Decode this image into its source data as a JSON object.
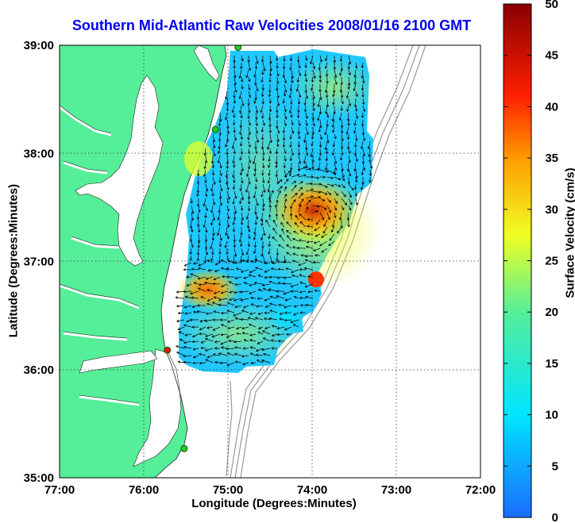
{
  "chart_data": {
    "type": "heatmap",
    "title": "Southern Mid-Atlantic Raw Velocities 2008/01/16 2100 GMT",
    "xlabel": "Longitude (Degrees:Minutes)",
    "ylabel": "Latitude (Degrees:Minutes)",
    "colorbar_label": "Surface Velocity (cm/s)",
    "x_ticks": [
      "77:00",
      "76:00",
      "75:00",
      "74:00",
      "73:00",
      "72:00"
    ],
    "y_ticks": [
      "39:00",
      "38:00",
      "37:00",
      "36:00",
      "35:00"
    ],
    "colorbar_ticks": [
      "50",
      "45",
      "40",
      "35",
      "30",
      "25",
      "20",
      "15",
      "10",
      "5",
      "0"
    ],
    "xlim": [
      -77.0,
      -72.0
    ],
    "ylim": [
      35.0,
      39.0
    ],
    "clim": [
      0,
      50
    ],
    "grid": true,
    "colors": {
      "land": "#55ee99",
      "title": "#0000ee",
      "station": "#22cc22",
      "station_alert": "#ee1111"
    },
    "stations": [
      {
        "lon": -74.88,
        "lat": 38.98,
        "status": "ok"
      },
      {
        "lon": -75.15,
        "lat": 38.22,
        "status": "ok"
      },
      {
        "lon": -75.72,
        "lat": 36.18,
        "status": "alert"
      },
      {
        "lon": -75.52,
        "lat": 35.27,
        "status": "ok"
      }
    ],
    "velocity_regions": [
      {
        "name": "ne_offshore",
        "lon": -73.9,
        "lat": 37.55,
        "speed": 40
      },
      {
        "name": "cape_charles",
        "lon": -75.42,
        "lat": 36.8,
        "speed": 38
      },
      {
        "name": "south_edge",
        "lon": -74.05,
        "lat": 36.95,
        "speed": 42
      },
      {
        "name": "delaware_mouth",
        "lon": -75.0,
        "lat": 38.7,
        "speed": 15
      },
      {
        "name": "central",
        "lon": -74.6,
        "lat": 37.3,
        "speed": 14
      },
      {
        "name": "southern_shelf",
        "lon": -75.0,
        "lat": 36.35,
        "speed": 12
      }
    ]
  }
}
